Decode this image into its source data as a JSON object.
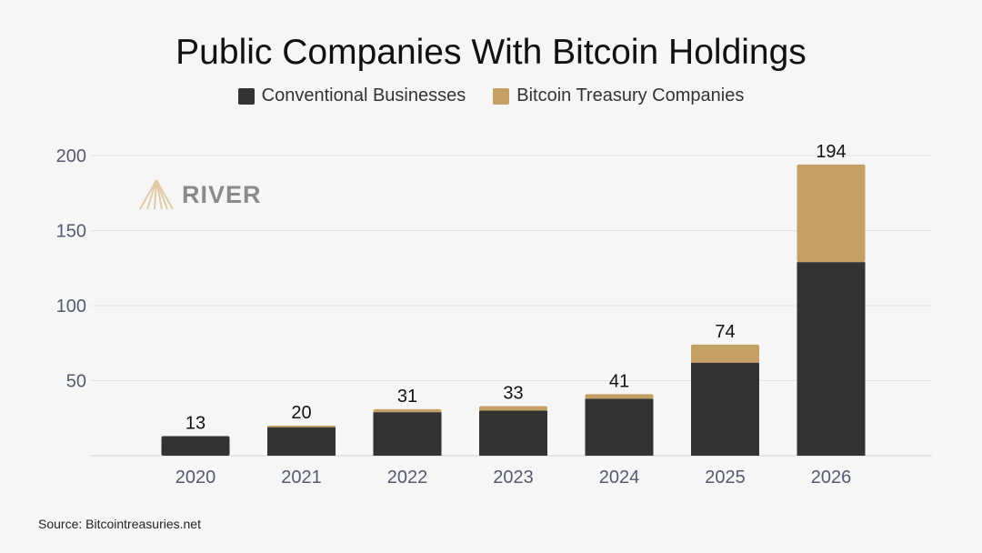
{
  "chart_data": {
    "type": "bar",
    "stacked": true,
    "title": "Public Companies With Bitcoin Holdings",
    "xlabel": "",
    "ylabel": "",
    "categories": [
      "2020",
      "2021",
      "2022",
      "2023",
      "2024",
      "2025",
      "2026"
    ],
    "series": [
      {
        "name": "Conventional Businesses",
        "color": "#333333",
        "values": [
          13,
          19,
          29,
          30,
          38,
          62,
          129
        ]
      },
      {
        "name": "Bitcoin Treasury Companies",
        "color": "#c4a064",
        "values": [
          0,
          1,
          2,
          3,
          3,
          12,
          65
        ]
      }
    ],
    "totals": [
      13,
      20,
      31,
      33,
      41,
      74,
      194
    ],
    "ylim": [
      0,
      200
    ],
    "yticks": [
      50,
      100,
      150,
      200
    ],
    "grid": true,
    "legend": "top"
  },
  "watermark": "RIVER",
  "source": "Source: Bitcointreasuries.net"
}
